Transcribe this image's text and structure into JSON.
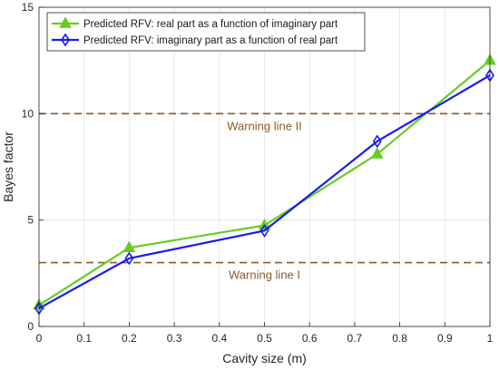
{
  "chart_data": {
    "type": "line",
    "title": "",
    "xlabel": "Cavity size (m)",
    "ylabel": "Bayes factor",
    "xlim": [
      0,
      1
    ],
    "ylim": [
      0,
      15
    ],
    "x_ticks": [
      0,
      0.1,
      0.2,
      0.3,
      0.4,
      0.5,
      0.6,
      0.7,
      0.8,
      0.9,
      1
    ],
    "x_tick_labels": [
      "0",
      "0.1",
      "0.2",
      "0.3",
      "0.4",
      "0.5",
      "0.6",
      "0.7",
      "0.8",
      "0.9",
      "1"
    ],
    "y_ticks": [
      0,
      5,
      10,
      15
    ],
    "y_tick_labels": [
      "0",
      "5",
      "10",
      "15"
    ],
    "grid": true,
    "legend_position": "top-left",
    "series": [
      {
        "name": "Predicted RFV: real part as a function of imaginary part",
        "color": "#66cc22",
        "marker": "triangle",
        "x": [
          0,
          0.2,
          0.5,
          0.75,
          1
        ],
        "y": [
          1.0,
          3.7,
          4.75,
          8.1,
          12.5
        ]
      },
      {
        "name": "Predicted RFV: imaginary part as a function of real part",
        "color": "#1a1aee",
        "marker": "diamond",
        "x": [
          0,
          0.2,
          0.5,
          0.75,
          1
        ],
        "y": [
          0.85,
          3.2,
          4.5,
          8.7,
          11.8
        ]
      }
    ],
    "reference_lines": [
      {
        "label": "Warning line II",
        "y": 10,
        "color": "#8b5a2b",
        "style": "dashed"
      },
      {
        "label": "Warning line I",
        "y": 3,
        "color": "#8b5a2b",
        "style": "dashed"
      }
    ]
  }
}
